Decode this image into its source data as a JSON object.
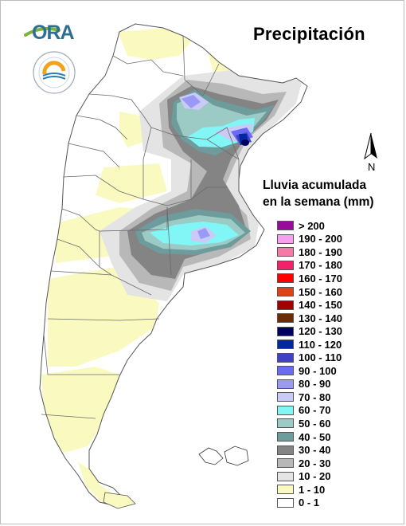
{
  "title": "Precipitación",
  "logo": {
    "text": "ORA",
    "swoosh_color": "#7bb43a",
    "text_color": "#2f6f93"
  },
  "seal": {
    "ring_text": "INSTITUTO METEOROLÓGICO · ARGENTINA",
    "colors": [
      "#f3a21b",
      "#2b7ab5"
    ]
  },
  "north_label": "N",
  "legend": {
    "title_line1": "Lluvia acumulada",
    "title_line2": "en la semana (mm)",
    "items": [
      {
        "label": "> 200",
        "color": "#9a0a9a"
      },
      {
        "label": "190 - 200",
        "color": "#f6a0f0"
      },
      {
        "label": "180 - 190",
        "color": "#f47aa8"
      },
      {
        "label": "170 - 180",
        "color": "#f2226a"
      },
      {
        "label": "160 - 170",
        "color": "#ff0000"
      },
      {
        "label": "150 - 160",
        "color": "#e0401a"
      },
      {
        "label": "140 - 150",
        "color": "#a00000"
      },
      {
        "label": "130 - 140",
        "color": "#6e2a00"
      },
      {
        "label": "120 - 130",
        "color": "#000060"
      },
      {
        "label": "110 - 120",
        "color": "#0028a0"
      },
      {
        "label": "100 - 110",
        "color": "#4040c8"
      },
      {
        "label": "90 - 100",
        "color": "#6a6af2"
      },
      {
        "label": "80 - 90",
        "color": "#9a9af6"
      },
      {
        "label": "70 - 80",
        "color": "#cacaf6"
      },
      {
        "label": "60 - 70",
        "color": "#82f6f6"
      },
      {
        "label": "50 - 60",
        "color": "#9ccac4"
      },
      {
        "label": "40 - 50",
        "color": "#6e9c9c"
      },
      {
        "label": "30 - 40",
        "color": "#848484"
      },
      {
        "label": "20 - 30",
        "color": "#b8b8b8"
      },
      {
        "label": "10 - 20",
        "color": "#e4e4e4"
      },
      {
        "label": "1 - 10",
        "color": "#fafac0"
      },
      {
        "label": "0 - 1",
        "color": "#ffffff"
      }
    ]
  }
}
